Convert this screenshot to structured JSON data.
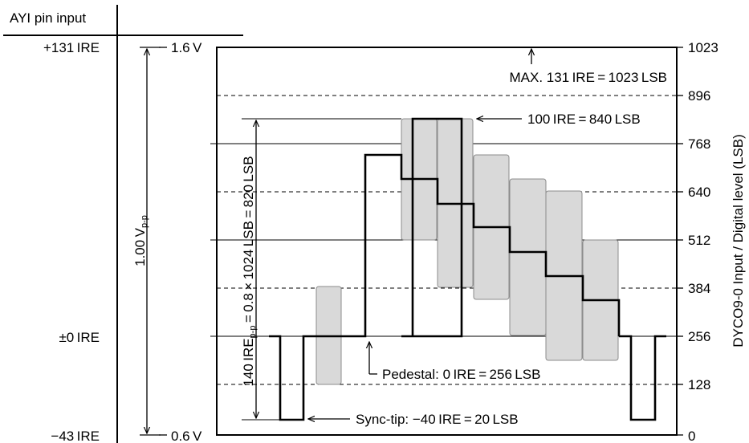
{
  "header": {
    "title": "AYI pin input"
  },
  "ire_labels": {
    "top": "+131 IRE",
    "zero": "±0 IRE",
    "bottom": "−43 IRE"
  },
  "volt_labels": {
    "top": "1.6 V",
    "bottom": "0.6 V"
  },
  "vpp_label": {
    "main": "1.00 V",
    "sub": "p-p"
  },
  "ire140_label": {
    "pre": "140 IRE",
    "sub": "p-p",
    "post": " = 0.8 × 1024 LSB = 820 LSB"
  },
  "right_axis_title": "DYCO9-0 Input / Digital level (LSB)",
  "annotations": {
    "max": "MAX. 131 IRE = 1023 LSB",
    "ire100": "100 IRE = 840 LSB",
    "pedestal": "Pedestal: 0 IRE = 256 LSB",
    "sync": "Sync-tip: −40 IRE = 20 LSB"
  },
  "right_ticks": [
    "1023",
    "896",
    "768",
    "640",
    "512",
    "384",
    "256",
    "128",
    "0"
  ],
  "colors": {
    "line": "#000000",
    "band_fill": "#d9d9d9",
    "band_stroke": "#8c8c8c"
  }
}
